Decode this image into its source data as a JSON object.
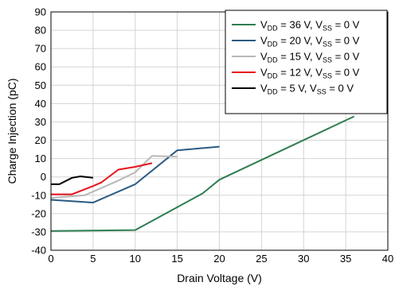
{
  "chart_data": {
    "type": "line",
    "xlabel": "Drain Voltage (V)",
    "ylabel": "Charge Injection (pC)",
    "xlim": [
      0,
      40
    ],
    "ylim": [
      -40,
      90
    ],
    "x_ticks": [
      0,
      5,
      10,
      15,
      20,
      25,
      30,
      35,
      40
    ],
    "y_ticks": [
      -40,
      -30,
      -20,
      -10,
      0,
      10,
      20,
      30,
      40,
      50,
      60,
      70,
      80,
      90
    ],
    "grid": true,
    "legend_position": "top-right",
    "series": [
      {
        "name": "V_DD = 36 V, V_SS = 0 V",
        "color": "#2e7d52",
        "points": [
          [
            0,
            -29.5
          ],
          [
            10,
            -29
          ],
          [
            18,
            -9
          ],
          [
            20,
            -1.5
          ],
          [
            36,
            33
          ]
        ]
      },
      {
        "name": "V_DD = 20 V, V_SS = 0 V",
        "color": "#2a5a82",
        "points": [
          [
            0,
            -12.5
          ],
          [
            5,
            -14
          ],
          [
            10,
            -4
          ],
          [
            15,
            14.5
          ],
          [
            20,
            16.5
          ]
        ]
      },
      {
        "name": "V_DD = 15 V, V_SS = 0 V",
        "color": "#b8b8b8",
        "points": [
          [
            0,
            -11.5
          ],
          [
            4,
            -10
          ],
          [
            8,
            -2
          ],
          [
            10,
            2.5
          ],
          [
            12,
            11.5
          ],
          [
            15,
            11
          ]
        ]
      },
      {
        "name": "V_DD = 12 V, V_SS = 0 V",
        "color": "#e8121c",
        "points": [
          [
            0,
            -9.5
          ],
          [
            2.5,
            -9.5
          ],
          [
            5,
            -5
          ],
          [
            6,
            -3
          ],
          [
            8,
            4
          ],
          [
            10,
            5.5
          ],
          [
            12,
            7.5
          ]
        ]
      },
      {
        "name": "V_DD = 5 V, V_SS = 0 V",
        "color": "#000000",
        "points": [
          [
            0,
            -4
          ],
          [
            1,
            -4
          ],
          [
            2.5,
            -0.5
          ],
          [
            3.5,
            0.3
          ],
          [
            5,
            -0.5
          ]
        ]
      }
    ]
  },
  "legend": {
    "items": [
      {
        "main": "V",
        "sub1": "DD",
        "mid": " = 36 V, V",
        "sub2": "SS",
        "end": " = 0 V"
      },
      {
        "main": "V",
        "sub1": "DD",
        "mid": " = 20 V, V",
        "sub2": "SS",
        "end": " = 0 V"
      },
      {
        "main": "V",
        "sub1": "DD",
        "mid": " = 15 V, V",
        "sub2": "SS",
        "end": " = 0 V"
      },
      {
        "main": "V",
        "sub1": "DD",
        "mid": " = 12 V, V",
        "sub2": "SS",
        "end": " = 0 V"
      },
      {
        "main": "V",
        "sub1": "DD",
        "mid": " = 5 V, V",
        "sub2": "SS",
        "end": " = 0 V"
      }
    ]
  }
}
